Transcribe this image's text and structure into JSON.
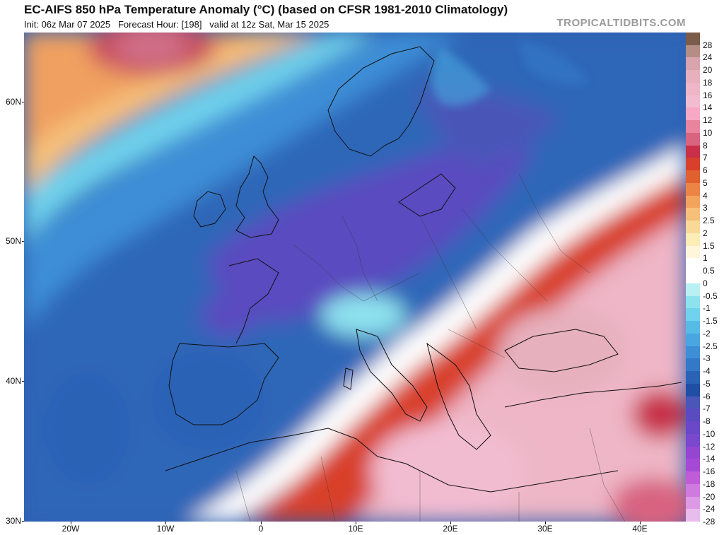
{
  "header": {
    "title": "EC-AIFS 850 hPa Temperature Anomaly (°C) (based on CFSR 1981-2010 Climatology)",
    "subtitle": "Init: 06z Mar 07 2025   Forecast Hour: [198]   valid at 12z Sat, Mar 15 2025",
    "watermark": "TROPICALTIDBITS.COM"
  },
  "axes": {
    "lat_labels": [
      "60N",
      "50N",
      "40N",
      "30N"
    ],
    "lon_labels": [
      "20W",
      "10W",
      "0",
      "10E",
      "20E",
      "30E",
      "40E"
    ]
  },
  "colorbar": {
    "levels": [
      "28",
      "24",
      "20",
      "18",
      "16",
      "14",
      "12",
      "10",
      "8",
      "7",
      "6",
      "5",
      "4",
      "3",
      "2.5",
      "2",
      "1.5",
      "1",
      "0.5",
      "0",
      "-0.5",
      "-1",
      "-1.5",
      "-2",
      "-2.5",
      "-3",
      "-4",
      "-5",
      "-6",
      "-7",
      "-8",
      "-10",
      "-12",
      "-14",
      "-16",
      "-18",
      "-20",
      "-24",
      "-28"
    ],
    "colors": [
      "#7a5c48",
      "#b48e84",
      "#d8a4ae",
      "#e6b0bd",
      "#eeb6c6",
      "#f2bcd0",
      "#f6a8c4",
      "#e8849e",
      "#d86480",
      "#c8304a",
      "#d8402c",
      "#e06030",
      "#ec8446",
      "#f2a45c",
      "#f6c07a",
      "#fad896",
      "#fcecb6",
      "#fff6dc",
      "#ffffff",
      "#ffffff",
      "#b8f0f4",
      "#8ee2ee",
      "#70d2ec",
      "#56bce6",
      "#4aa6e0",
      "#3e8ed6",
      "#3478c8",
      "#2a62b6",
      "#1f4ea4",
      "#4a56b8",
      "#5a4cc0",
      "#6a48c8",
      "#7a48cc",
      "#9446d0",
      "#a44ad4",
      "#c05cd8",
      "#d07ae0",
      "#dc9ae6",
      "#e8bcec"
    ]
  },
  "map": {
    "features": [
      "temperature-anomaly-field",
      "coastlines",
      "country-borders"
    ]
  }
}
